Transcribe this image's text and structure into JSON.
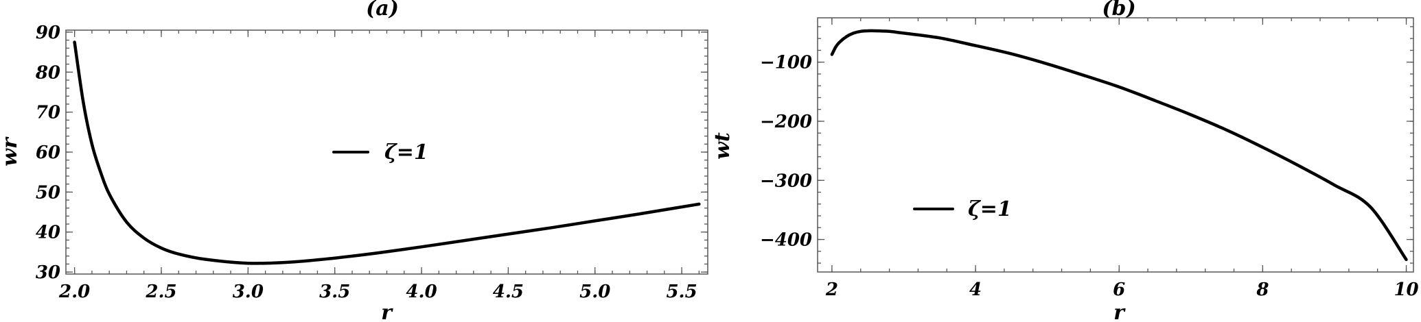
{
  "chart_data": [
    {
      "type": "line",
      "title": "(a)",
      "xlabel": "r",
      "ylabel": "wr",
      "xlim": [
        1.95,
        5.65
      ],
      "ylim": [
        29.5,
        90.5
      ],
      "xticks": [
        2.0,
        2.5,
        3.0,
        3.5,
        4.0,
        4.5,
        5.0,
        5.5
      ],
      "xtick_labels": [
        "2.0",
        "2.5",
        "3.0",
        "3.5",
        "4.0",
        "4.5",
        "5.0",
        "5.5"
      ],
      "yticks": [
        30,
        40,
        50,
        60,
        70,
        80,
        90
      ],
      "ytick_labels": [
        "30",
        "40",
        "50",
        "60",
        "70",
        "80",
        "90"
      ],
      "legend": {
        "label": "ζ=1",
        "placement": "center"
      },
      "series": [
        {
          "name": "ζ=1",
          "x": [
            2.0,
            2.05,
            2.1,
            2.15,
            2.2,
            2.3,
            2.4,
            2.5,
            2.6,
            2.75,
            3.0,
            3.25,
            3.5,
            3.75,
            4.0,
            4.25,
            4.5,
            4.75,
            5.0,
            5.25,
            5.6
          ],
          "y": [
            87.5,
            72.5,
            62.0,
            55.0,
            49.5,
            42.5,
            38.5,
            36.0,
            34.5,
            33.2,
            32.2,
            32.5,
            33.5,
            34.8,
            36.3,
            37.9,
            39.5,
            41.1,
            42.8,
            44.5,
            47.0
          ]
        }
      ]
    },
    {
      "type": "line",
      "title": "(b)",
      "xlabel": "r",
      "ylabel": "wt",
      "xlim": [
        1.8,
        10.1
      ],
      "ylim": [
        -455,
        -25
      ],
      "xticks": [
        2,
        4,
        6,
        8,
        10
      ],
      "xtick_labels": [
        "2",
        "4",
        "6",
        "8",
        "10"
      ],
      "yticks": [
        -100,
        -200,
        -300,
        -400
      ],
      "ytick_labels": [
        "−100",
        "−200",
        "−300",
        "−400"
      ],
      "legend": {
        "label": "ζ=1",
        "placement": "lower-left"
      },
      "series": [
        {
          "name": "ζ=1",
          "x": [
            2.0,
            2.05,
            2.1,
            2.2,
            2.3,
            2.4,
            2.5,
            2.6,
            2.8,
            3.0,
            3.5,
            4.0,
            4.5,
            5.0,
            5.5,
            6.0,
            6.5,
            7.0,
            7.5,
            8.0,
            8.5,
            9.0,
            9.5,
            10.0
          ],
          "y": [
            -87,
            -75,
            -67,
            -57,
            -51,
            -48,
            -47,
            -47,
            -48,
            -51,
            -59,
            -72,
            -86,
            -103,
            -122,
            -142,
            -165,
            -189,
            -215,
            -244,
            -275,
            -308,
            -345,
            -434
          ]
        }
      ]
    }
  ]
}
